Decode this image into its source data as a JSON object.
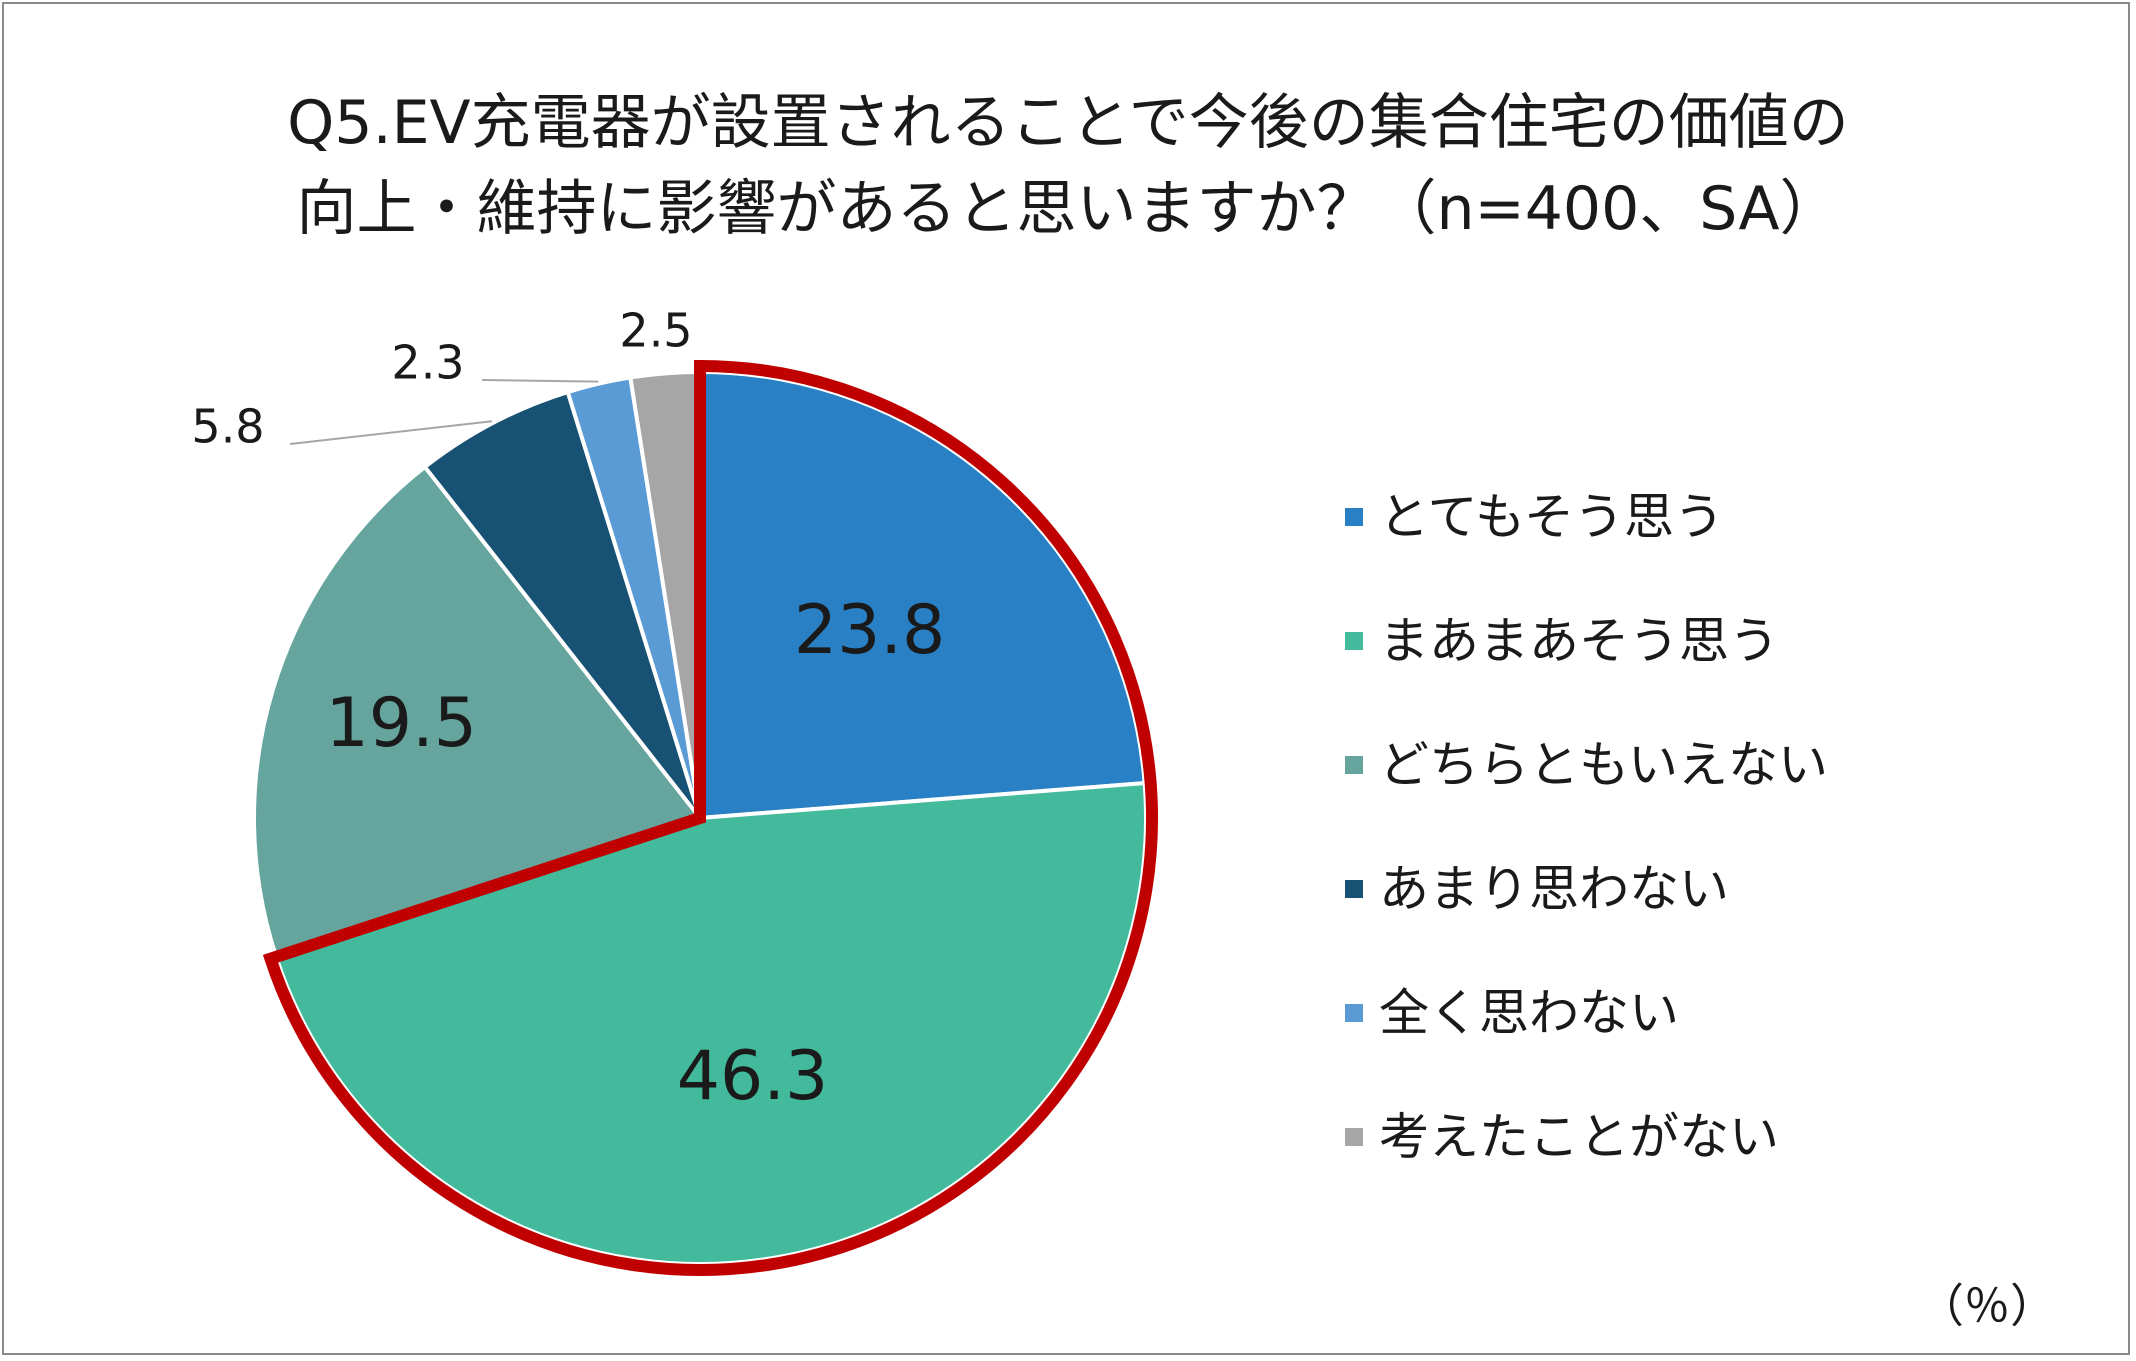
{
  "title": {
    "line1": "Q5.EV充電器が設置されることで今後の集合住宅の価値の",
    "line2": "向上・維持に影響があると思いますか？（n=400、SA）"
  },
  "unit_label": "（％）",
  "chart_data": {
    "type": "pie",
    "start": "12 o'clock, clockwise",
    "highlighted_categories": [
      "とてもそう思う",
      "まあまあそう思う"
    ],
    "highlight_color": "#c00000",
    "legend_position": "right",
    "slices": [
      {
        "label": "とてもそう思う",
        "value": 23.8,
        "value_label": "23.8",
        "color": "#2a80c4"
      },
      {
        "label": "まあまあそう思う",
        "value": 46.3,
        "value_label": "46.3",
        "color": "#43ba9c"
      },
      {
        "label": "どちらともいえない",
        "value": 19.5,
        "value_label": "19.5",
        "color": "#65a59e"
      },
      {
        "label": "あまり思わない",
        "value": 5.8,
        "value_label": "5.8",
        "color": "#175173"
      },
      {
        "label": "全く思わない",
        "value": 2.3,
        "value_label": "2.3",
        "color": "#5b9bd5"
      },
      {
        "label": "考えたことがない",
        "value": 2.5,
        "value_label": "2.5",
        "color": "#a6a6a6"
      }
    ]
  }
}
